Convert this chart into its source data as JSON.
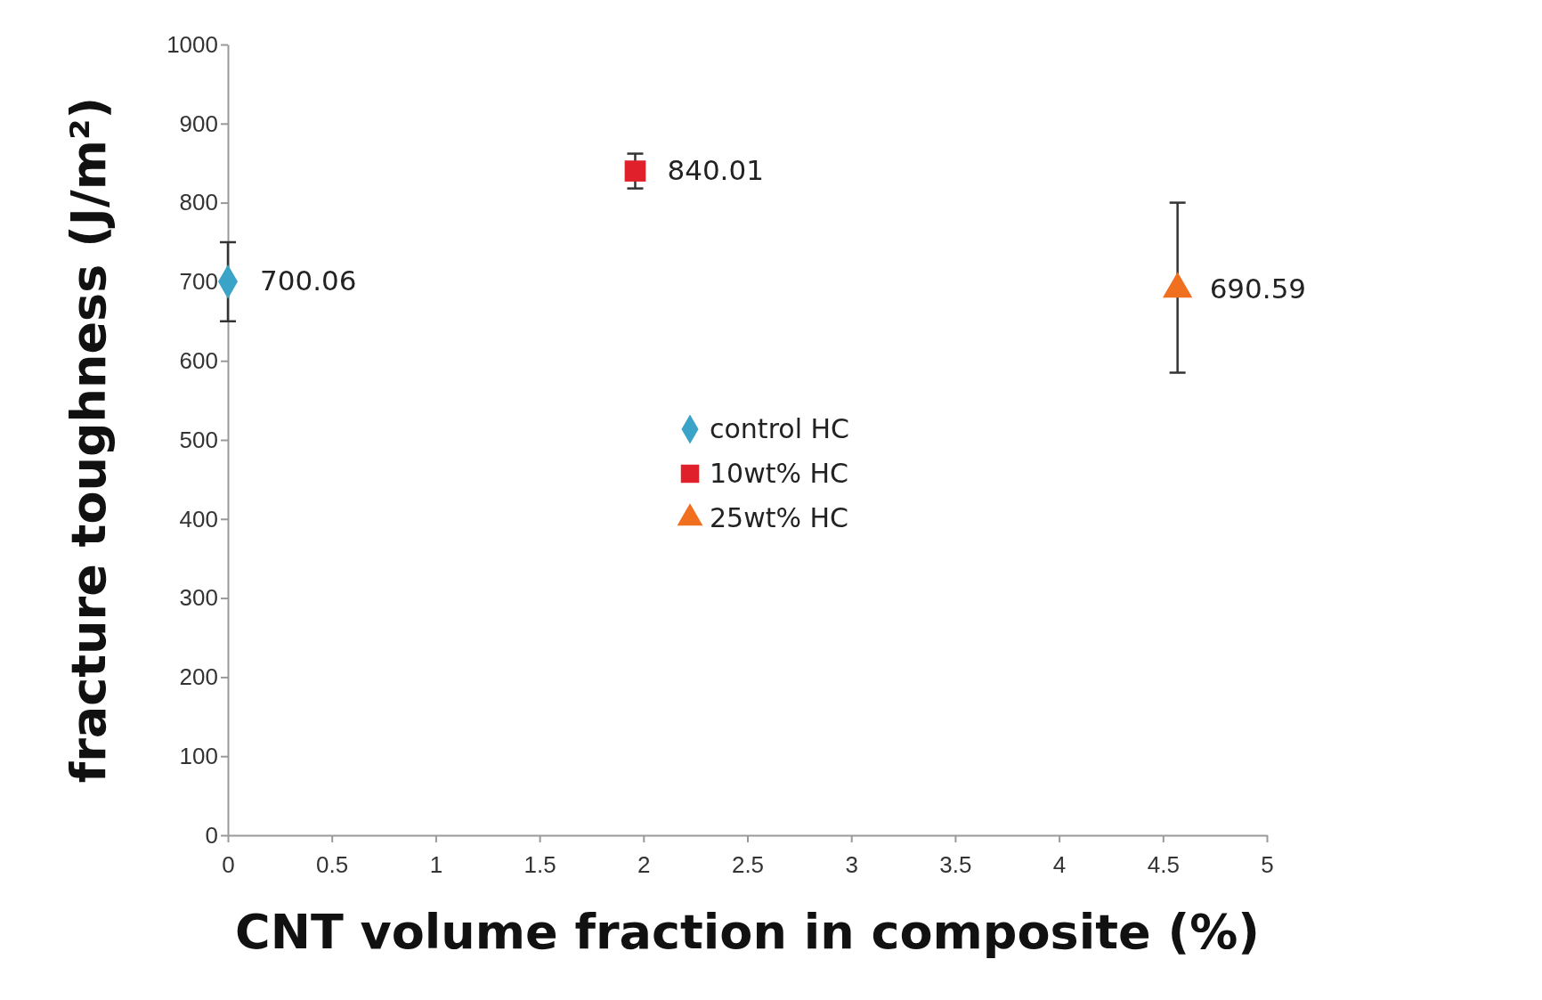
{
  "chart_data": {
    "type": "scatter",
    "xlabel": "CNT volume fraction in composite (%)",
    "ylabel": "fracture toughness (J/m²)",
    "xlim": [
      0,
      5
    ],
    "xticks": [
      0,
      0.5,
      1,
      1.5,
      2,
      2.5,
      3,
      3.5,
      4,
      4.5,
      5
    ],
    "ylim": [
      0,
      1000
    ],
    "yticks": [
      0,
      100,
      200,
      300,
      400,
      500,
      600,
      700,
      800,
      900,
      1000
    ],
    "grid": false,
    "legend": "center",
    "data_labels": true,
    "series": [
      {
        "name": "control HC",
        "color": "#3aa3c7",
        "marker": "diamond",
        "x": [
          0
        ],
        "values": [
          700.06
        ],
        "errors": [
          [
            650,
            750
          ]
        ]
      },
      {
        "name": "10wt% HC",
        "color": "#e0202a",
        "marker": "square",
        "x": [
          1.96
        ],
        "values": [
          840.01
        ],
        "errors": [
          [
            818,
            862
          ]
        ]
      },
      {
        "name": "25wt% HC",
        "color": "#f07020",
        "marker": "triangle",
        "x": [
          4.57
        ],
        "values": [
          690.59
        ],
        "errors": [
          [
            585,
            800
          ]
        ]
      }
    ]
  }
}
